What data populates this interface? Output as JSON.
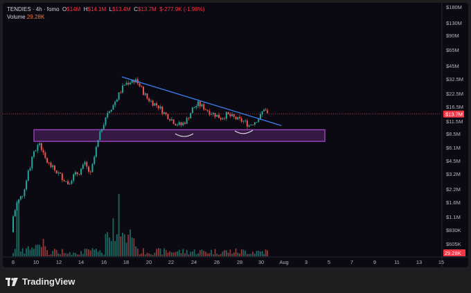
{
  "legend": {
    "symbol": "TENDIES · 4h · fomo",
    "o_label": "O",
    "o": "$14M",
    "h_label": "H",
    "h": "$14.1M",
    "l_label": "L",
    "l": "$13.4M",
    "c_label": "C",
    "c": "$13.7M",
    "change": "$-277.9K (-1.98%)",
    "volume_label": "Volume",
    "volume_value": "29.28K"
  },
  "footer": {
    "brand": "TradingView"
  },
  "chart_data": {
    "type": "candlestick",
    "title": "",
    "x_tick_labels": [
      "8",
      "10",
      "12",
      "14",
      "16",
      "18",
      "20",
      "22",
      "24",
      "26",
      "28",
      "30",
      "Aug",
      "3",
      "5",
      "7",
      "9",
      "11",
      "13",
      "15"
    ],
    "y_tick_labels": [
      "$180M",
      "$130M",
      "$90M",
      "$65M",
      "$45M",
      "$32.5M",
      "$22.5M",
      "$16.5M",
      "$11.5M",
      "$8.5M",
      "$6.1M",
      "$4.5M",
      "$3.2M",
      "$2.2M",
      "$1.6M",
      "$1.1M",
      "$830K",
      "$605K"
    ],
    "y_scale": "log",
    "last_price": "$13.7M",
    "last_volume": "29.28K",
    "colors": {
      "up": "#26a69a",
      "down": "#ef5350",
      "trendline": "#3b82f6",
      "zone": "#b04ad6",
      "price_line": "#f23645"
    },
    "zone": {
      "low": 7.1,
      "high": 9.4,
      "from_day": 8.2,
      "to_day": 5,
      "unit": "$M"
    },
    "trendline": {
      "from": [
        "Jul 17.9",
        33.5
      ],
      "to": [
        "Jul 31.9",
        10.4
      ]
    },
    "ohlc_summary_note": "",
    "candles_daily_close_usd_m": [
      [
        8.0,
        1.0
      ],
      [
        8.5,
        1.6
      ],
      [
        9.0,
        2.0
      ],
      [
        9.5,
        3.3
      ],
      [
        10.0,
        5.5
      ],
      [
        10.5,
        6.8
      ],
      [
        11.0,
        4.6
      ],
      [
        11.5,
        3.9
      ],
      [
        12.0,
        3.4
      ],
      [
        12.5,
        3.0
      ],
      [
        13.0,
        2.6
      ],
      [
        13.5,
        3.1
      ],
      [
        14.0,
        3.4
      ],
      [
        14.5,
        4.1
      ],
      [
        15.0,
        3.2
      ],
      [
        15.5,
        6.0
      ],
      [
        16.0,
        10.0
      ],
      [
        16.5,
        14.5
      ],
      [
        17.0,
        17.0
      ],
      [
        17.5,
        22.0
      ],
      [
        18.0,
        28.0
      ],
      [
        18.5,
        30.0
      ],
      [
        19.0,
        31.5
      ],
      [
        19.5,
        25.0
      ],
      [
        20.0,
        20.0
      ],
      [
        20.5,
        18.0
      ],
      [
        21.0,
        16.5
      ],
      [
        21.5,
        14.0
      ],
      [
        22.0,
        12.5
      ],
      [
        22.5,
        11.0
      ],
      [
        23.0,
        10.5
      ],
      [
        23.5,
        12.0
      ],
      [
        24.0,
        15.5
      ],
      [
        24.5,
        17.5
      ],
      [
        25.0,
        16.0
      ],
      [
        25.5,
        14.5
      ],
      [
        26.0,
        13.5
      ],
      [
        26.5,
        12.5
      ],
      [
        27.0,
        13.5
      ],
      [
        27.5,
        12.8
      ],
      [
        28.0,
        12.0
      ],
      [
        28.5,
        11.5
      ],
      [
        29.0,
        10.5
      ],
      [
        29.5,
        11.5
      ],
      [
        30.0,
        13.0
      ],
      [
        30.3,
        15.8
      ],
      [
        30.6,
        13.7
      ]
    ]
  }
}
